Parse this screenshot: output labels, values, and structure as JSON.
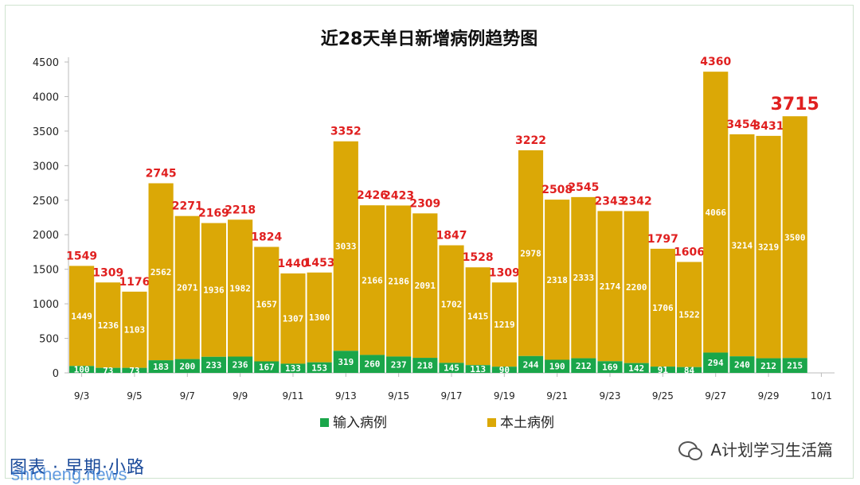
{
  "chart_data": {
    "type": "bar",
    "stacked": true,
    "title": "近28天单日新增病例趋势图",
    "ylim": [
      0,
      4500
    ],
    "yticks": [
      0,
      500,
      1000,
      1500,
      2000,
      2500,
      3000,
      3500,
      4000,
      4500
    ],
    "x_tick_labels": [
      "9/3",
      "9/5",
      "9/7",
      "9/9",
      "9/11",
      "9/13",
      "9/15",
      "9/17",
      "9/19",
      "9/21",
      "9/23",
      "9/25",
      "9/27",
      "9/29",
      "10/1"
    ],
    "categories": [
      "9/3",
      "9/4",
      "9/5",
      "9/6",
      "9/7",
      "9/8",
      "9/9",
      "9/10",
      "9/11",
      "9/12",
      "9/13",
      "9/14",
      "9/15",
      "9/16",
      "9/17",
      "9/18",
      "9/19",
      "9/20",
      "9/21",
      "9/22",
      "9/23",
      "9/24",
      "9/25",
      "9/26",
      "9/27",
      "9/28",
      "9/29",
      "9/30"
    ],
    "series": [
      {
        "name": "输入病例",
        "color": "#1aa64a",
        "values": [
          100,
          73,
          73,
          183,
          200,
          233,
          236,
          167,
          133,
          153,
          319,
          260,
          237,
          218,
          145,
          113,
          90,
          244,
          190,
          212,
          169,
          142,
          91,
          84,
          294,
          240,
          212,
          215
        ]
      },
      {
        "name": "本土病例",
        "color": "#dba806",
        "values": [
          1449,
          1236,
          1103,
          2562,
          2071,
          1936,
          1982,
          1657,
          1307,
          1300,
          3033,
          2166,
          2186,
          2091,
          1702,
          1415,
          1219,
          2978,
          2318,
          2333,
          2174,
          2200,
          1706,
          1522,
          4066,
          3214,
          3219,
          3500
        ]
      }
    ],
    "totals": [
      1549,
      1309,
      1176,
      2745,
      2271,
      2169,
      2218,
      1824,
      1440,
      1453,
      3352,
      2426,
      2423,
      2309,
      1847,
      1528,
      1309,
      3222,
      2508,
      2545,
      2343,
      2342,
      1797,
      1606,
      4360,
      3454,
      3431,
      3715
    ],
    "legend": "bottom",
    "grid": false
  },
  "footer": {
    "left_text": "图表 · 早期·小路",
    "watermark": "shicheng.news",
    "right_text": "A计划学习生活篇"
  }
}
